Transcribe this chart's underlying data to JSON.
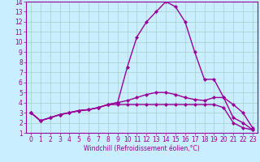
{
  "x": [
    0,
    1,
    2,
    3,
    4,
    5,
    6,
    7,
    8,
    9,
    10,
    11,
    12,
    13,
    14,
    15,
    16,
    17,
    18,
    19,
    20,
    21,
    22,
    23
  ],
  "line1": [
    3.0,
    2.2,
    2.5,
    2.8,
    3.0,
    3.2,
    3.3,
    3.5,
    3.8,
    3.8,
    3.8,
    3.8,
    3.8,
    3.8,
    3.8,
    3.8,
    3.8,
    3.8,
    3.8,
    3.8,
    3.5,
    2.0,
    1.5,
    1.3
  ],
  "line2": [
    3.0,
    2.2,
    2.5,
    2.8,
    3.0,
    3.2,
    3.3,
    3.5,
    3.8,
    4.0,
    4.2,
    4.5,
    4.8,
    5.0,
    5.0,
    4.8,
    4.5,
    4.3,
    4.2,
    4.5,
    4.5,
    2.5,
    2.0,
    1.3
  ],
  "line3": [
    3.0,
    2.2,
    2.5,
    2.8,
    3.0,
    3.2,
    3.3,
    3.5,
    3.8,
    4.0,
    7.5,
    10.5,
    12.0,
    13.0,
    14.0,
    13.5,
    12.0,
    9.0,
    6.3,
    6.3,
    4.5,
    3.8,
    3.0,
    1.5
  ],
  "line_color": "#990099",
  "bg_color": "#c8eeff",
  "grid_color": "#aacccc",
  "xlim_min": -0.5,
  "xlim_max": 23.5,
  "ylim_min": 1,
  "ylim_max": 14,
  "yticks": [
    1,
    2,
    3,
    4,
    5,
    6,
    7,
    8,
    9,
    10,
    11,
    12,
    13,
    14
  ],
  "xticks": [
    0,
    1,
    2,
    3,
    4,
    5,
    6,
    7,
    8,
    9,
    10,
    11,
    12,
    13,
    14,
    15,
    16,
    17,
    18,
    19,
    20,
    21,
    22,
    23
  ],
  "xlabel": "Windchill (Refroidissement éolien,°C)",
  "marker": "D",
  "marker_size": 2,
  "line_width": 1.0,
  "tick_fontsize": 5.5,
  "xlabel_fontsize": 5.5
}
